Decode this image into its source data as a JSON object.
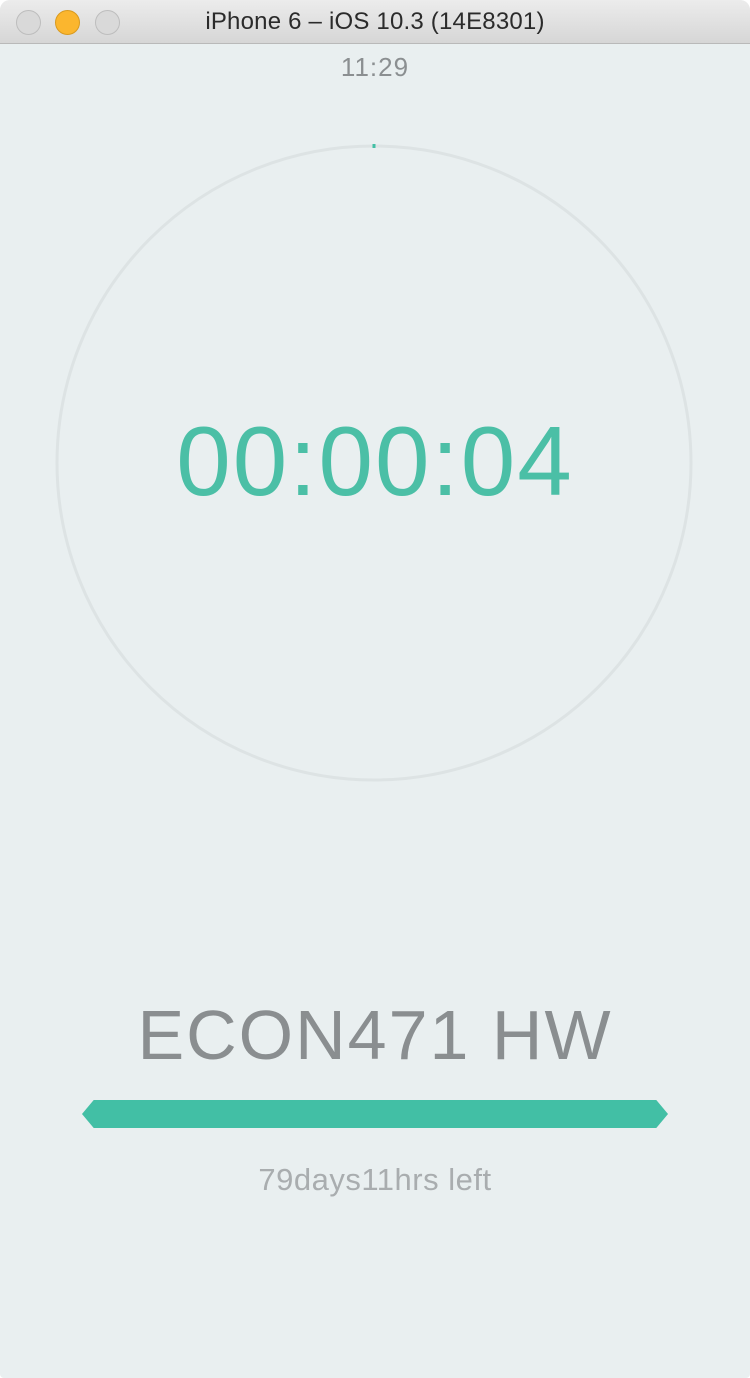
{
  "window": {
    "title": "iPhone 6 – iOS 10.3 (14E8301)",
    "buttons": [
      "close",
      "minimize",
      "zoom"
    ]
  },
  "status_bar": {
    "time": "11:29"
  },
  "timer": {
    "elapsed": "00:00:04",
    "ring_progress": 0.0
  },
  "task": {
    "name": "ECON471 HW",
    "remaining": "79days11hrs left",
    "progress_fraction": 1.0
  },
  "colors": {
    "accent": "#42bfa5",
    "ring_track": "#dde3e4",
    "background": "#e9eff0",
    "text_muted": "#8a8e90"
  }
}
